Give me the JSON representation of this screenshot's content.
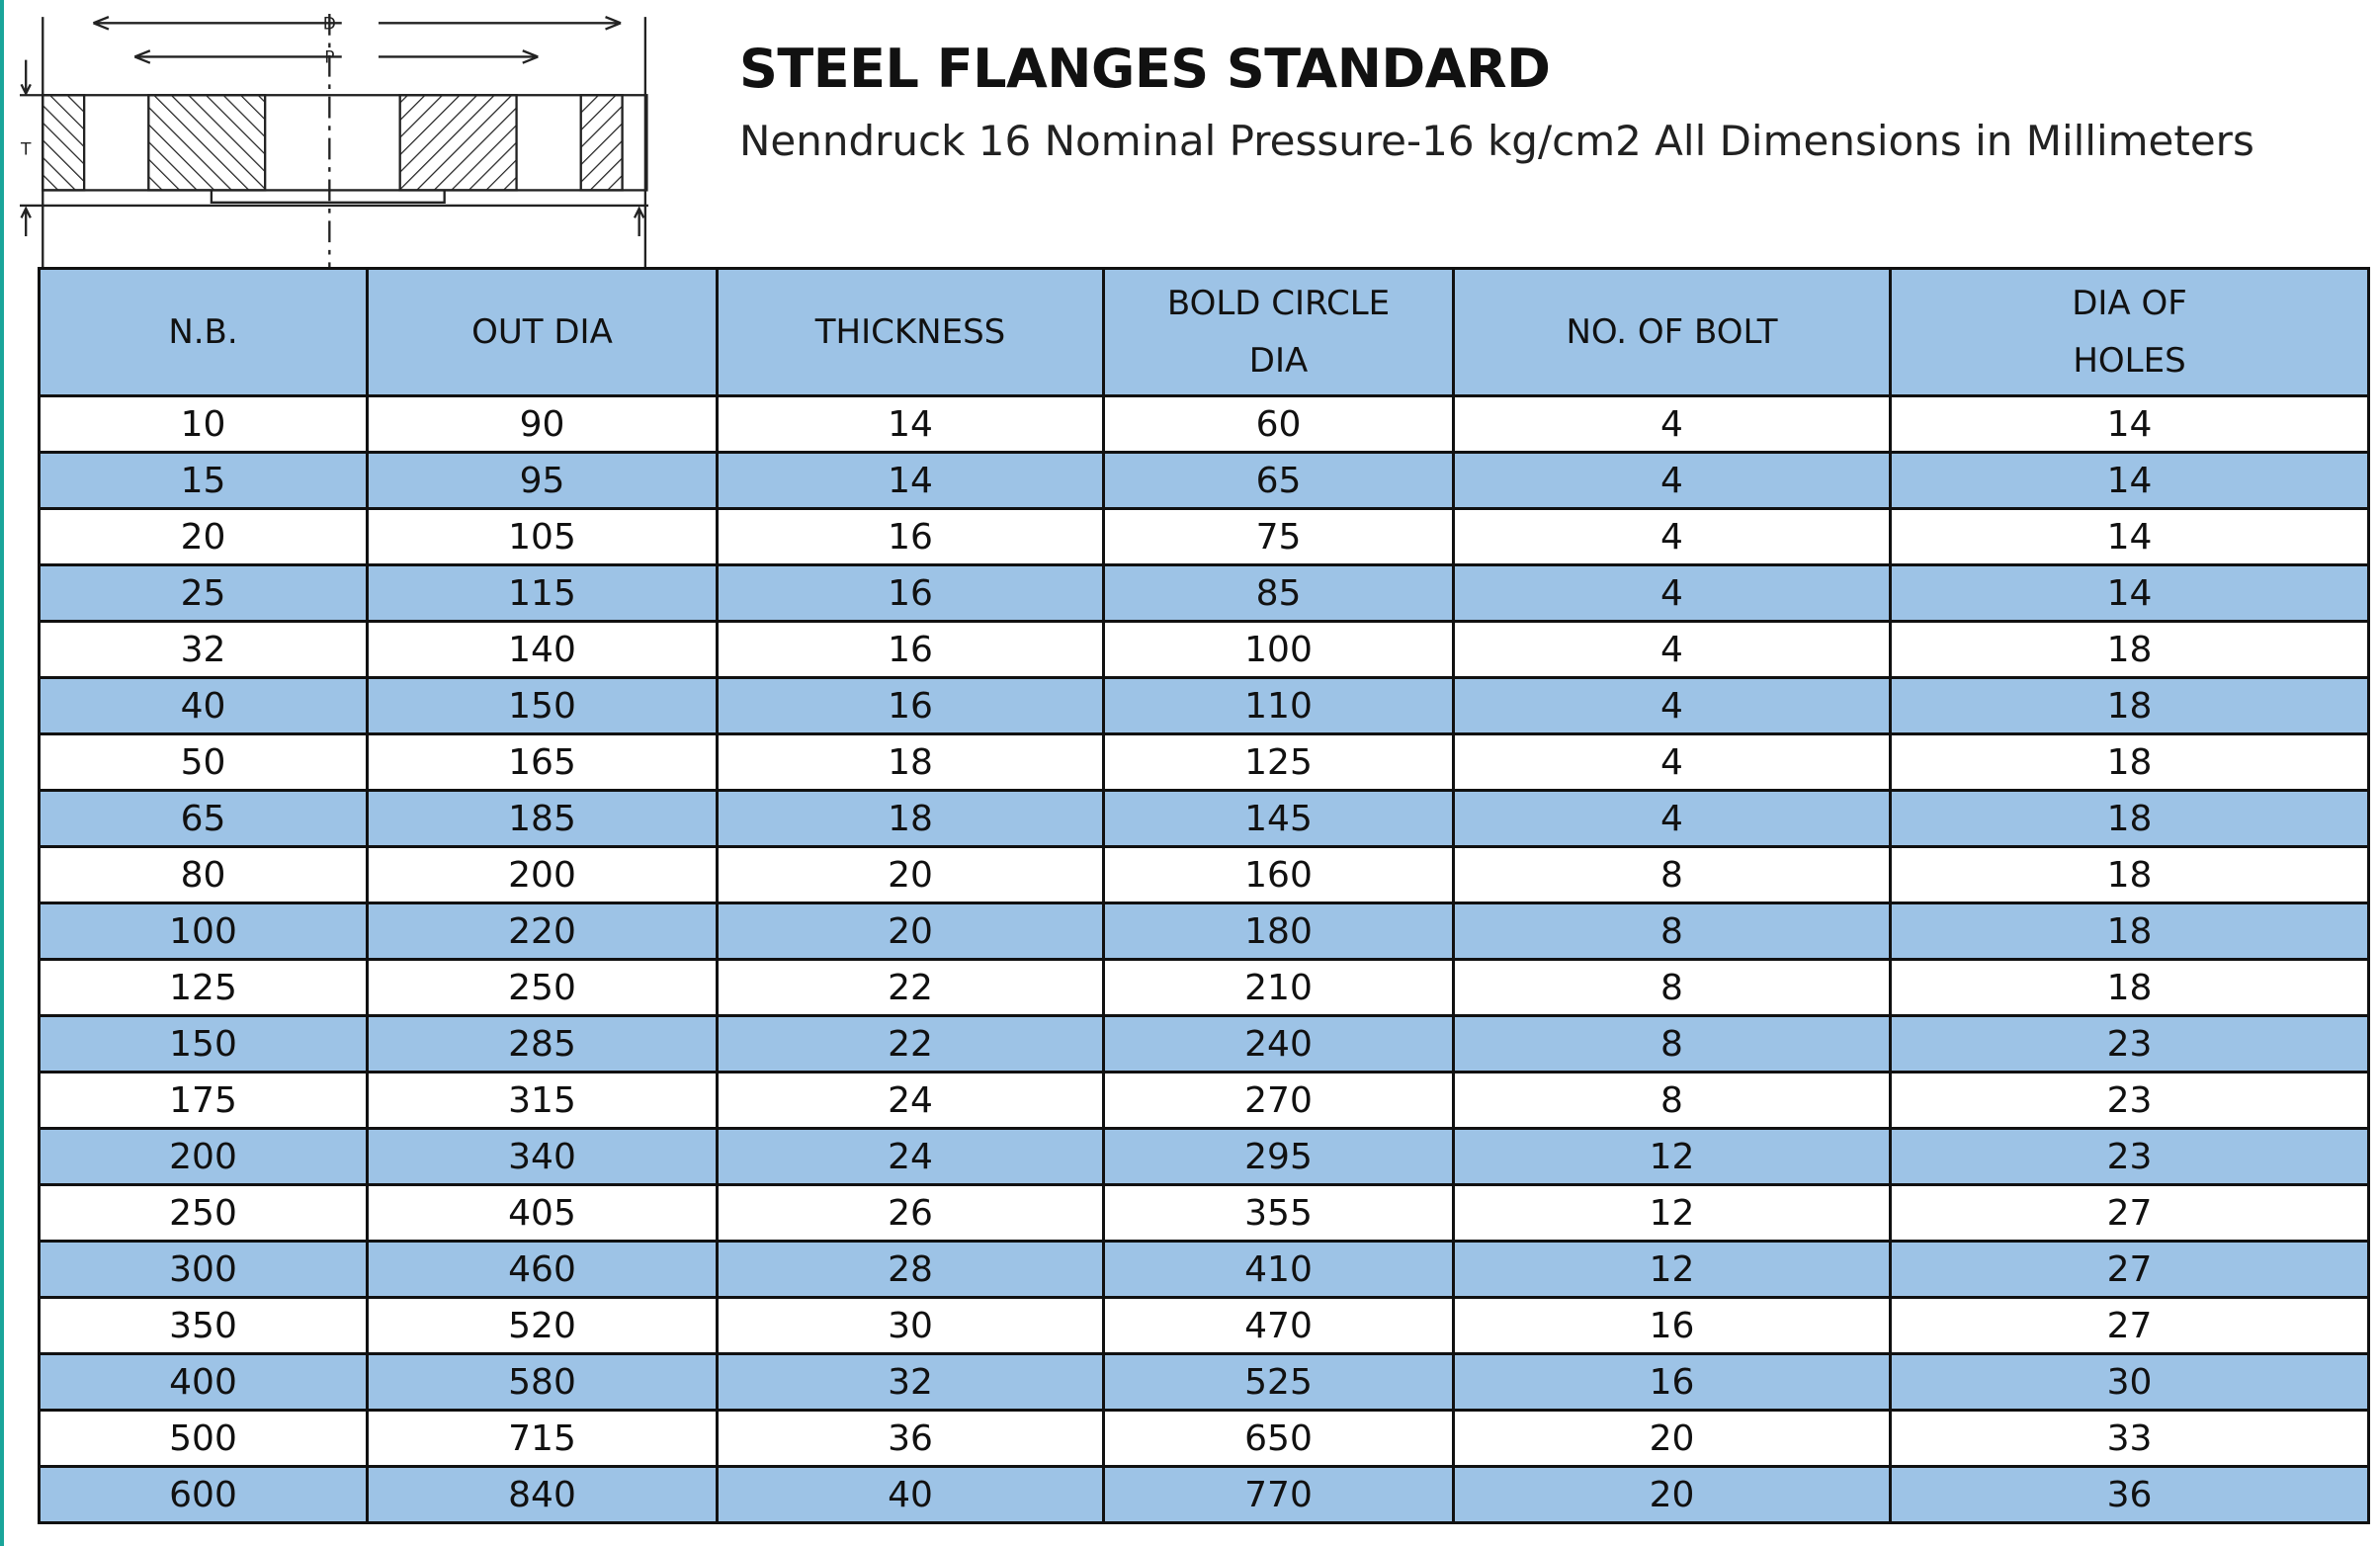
{
  "header": {
    "title": "STEEL FLANGES STANDARD",
    "subtitle": "Nenndruck 16 Nominal Pressure-16 kg/cm2 All Dimensions in Millimeters"
  },
  "diagram": {
    "labels": [
      "D",
      "P",
      "T"
    ]
  },
  "table": {
    "columns": [
      "N.B.",
      "OUT DIA",
      "THICKNESS",
      "BOLD CIRCLE DIA",
      "NO. OF BOLT",
      "DIA OF HOLES"
    ],
    "rows": [
      [
        "10",
        "90",
        "14",
        "60",
        "4",
        "14"
      ],
      [
        "15",
        "95",
        "14",
        "65",
        "4",
        "14"
      ],
      [
        "20",
        "105",
        "16",
        "75",
        "4",
        "14"
      ],
      [
        "25",
        "115",
        "16",
        "85",
        "4",
        "14"
      ],
      [
        "32",
        "140",
        "16",
        "100",
        "4",
        "18"
      ],
      [
        "40",
        "150",
        "16",
        "110",
        "4",
        "18"
      ],
      [
        "50",
        "165",
        "18",
        "125",
        "4",
        "18"
      ],
      [
        "65",
        "185",
        "18",
        "145",
        "4",
        "18"
      ],
      [
        "80",
        "200",
        "20",
        "160",
        "8",
        "18"
      ],
      [
        "100",
        "220",
        "20",
        "180",
        "8",
        "18"
      ],
      [
        "125",
        "250",
        "22",
        "210",
        "8",
        "18"
      ],
      [
        "150",
        "285",
        "22",
        "240",
        "8",
        "23"
      ],
      [
        "175",
        "315",
        "24",
        "270",
        "8",
        "23"
      ],
      [
        "200",
        "340",
        "24",
        "295",
        "12",
        "23"
      ],
      [
        "250",
        "405",
        "26",
        "355",
        "12",
        "27"
      ],
      [
        "300",
        "460",
        "28",
        "410",
        "12",
        "27"
      ],
      [
        "350",
        "520",
        "30",
        "470",
        "16",
        "27"
      ],
      [
        "400",
        "580",
        "32",
        "525",
        "16",
        "30"
      ],
      [
        "500",
        "715",
        "36",
        "650",
        "20",
        "33"
      ],
      [
        "600",
        "840",
        "40",
        "770",
        "20",
        "36"
      ]
    ]
  }
}
